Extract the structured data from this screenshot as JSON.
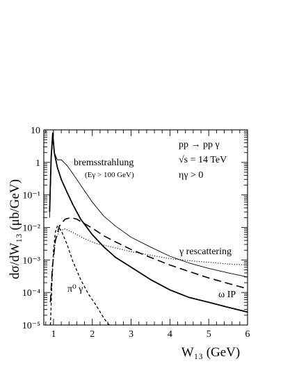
{
  "chart_data": {
    "type": "line",
    "xlabel": "W₁₃ (GeV)",
    "ylabel": "dσ/dW₁₃ (μb/GeV)",
    "xscale": "linear",
    "yscale": "log",
    "xlim": [
      0.75,
      6
    ],
    "ylim": [
      1e-05,
      10
    ],
    "x_ticks": [
      1,
      2,
      3,
      4,
      5,
      6
    ],
    "x_tick_labels": [
      "1",
      "2",
      "3",
      "4",
      "5",
      "6"
    ],
    "y_ticks": [
      1e-05,
      0.0001,
      0.001,
      0.01,
      0.1,
      1,
      10
    ],
    "y_tick_labels": [
      "10⁻⁵",
      "10⁻⁴",
      "10⁻³",
      "10⁻²",
      "10⁻¹",
      "1",
      "10"
    ],
    "grid": false,
    "legend": "none",
    "process_label": [
      "pp → pp γ",
      "√s = 14 TeV",
      "ηγ > 0"
    ],
    "series": [
      {
        "name": "bremsstrahlung",
        "note": "(Eγ > 100 GeV)",
        "style": "solid-thin",
        "x": [
          0.9,
          0.94,
          0.98,
          1.02,
          1.1,
          1.2,
          1.35,
          1.5,
          1.7,
          2.0,
          2.3,
          2.6,
          3.0,
          3.5,
          4.0,
          4.5,
          5.0,
          5.5,
          6.0
        ],
        "y": [
          0.02,
          1.0,
          6.0,
          2.0,
          1.2,
          1.2,
          0.8,
          0.45,
          0.2,
          0.06,
          0.022,
          0.011,
          0.005,
          0.0025,
          0.0013,
          0.0008,
          0.00055,
          0.0004,
          0.0003
        ]
      },
      {
        "name": "ω IP",
        "style": "solid-thick",
        "x": [
          0.9,
          0.94,
          0.98,
          1.02,
          1.1,
          1.2,
          1.35,
          1.5,
          1.7,
          2.0,
          2.3,
          2.6,
          3.0,
          3.5,
          4.0,
          4.5,
          5.0,
          5.5,
          6.0
        ],
        "y": [
          0.03,
          1.5,
          8.0,
          2.0,
          0.7,
          0.3,
          0.12,
          0.05,
          0.018,
          0.006,
          0.0025,
          0.0012,
          0.0006,
          0.00025,
          0.00012,
          7e-05,
          5e-05,
          3.5e-05,
          2.5e-05
        ]
      },
      {
        "name": "γ rescattering",
        "style": "dotted",
        "x": [
          0.92,
          0.97,
          1.05,
          1.15,
          1.3,
          1.5,
          1.8,
          2.1,
          2.5,
          3.0,
          3.5,
          4.0,
          4.5,
          5.0,
          5.5,
          6.0
        ],
        "y": [
          5e-05,
          0.0005,
          0.004,
          0.008,
          0.009,
          0.007,
          0.0045,
          0.0032,
          0.0025,
          0.0018,
          0.0014,
          0.0011,
          0.00095,
          0.00085,
          0.00075,
          0.0007
        ]
      },
      {
        "name": "",
        "style": "long-dashed",
        "x": [
          0.92,
          0.97,
          1.05,
          1.15,
          1.3,
          1.45,
          1.6,
          1.8,
          2.0,
          2.3,
          2.6,
          3.0,
          3.5,
          4.0,
          4.5,
          5.0,
          5.5,
          6.0
        ],
        "y": [
          5e-05,
          0.0006,
          0.004,
          0.011,
          0.018,
          0.02,
          0.018,
          0.013,
          0.0095,
          0.0055,
          0.0036,
          0.0021,
          0.0012,
          0.0007,
          0.00044,
          0.00028,
          0.00019,
          0.00013
        ]
      },
      {
        "name": "π⁰ γ",
        "style": "short-dashed",
        "x": [
          0.92,
          0.96,
          1.0,
          1.05,
          1.1,
          1.2,
          1.35,
          1.5,
          1.7,
          1.9,
          2.1,
          2.3,
          2.5
        ],
        "y": [
          1e-05,
          0.0002,
          0.002,
          0.0075,
          0.011,
          0.008,
          0.003,
          0.0009,
          0.00025,
          9e-05,
          4e-05,
          1.6e-05,
          8e-06
        ]
      }
    ]
  }
}
